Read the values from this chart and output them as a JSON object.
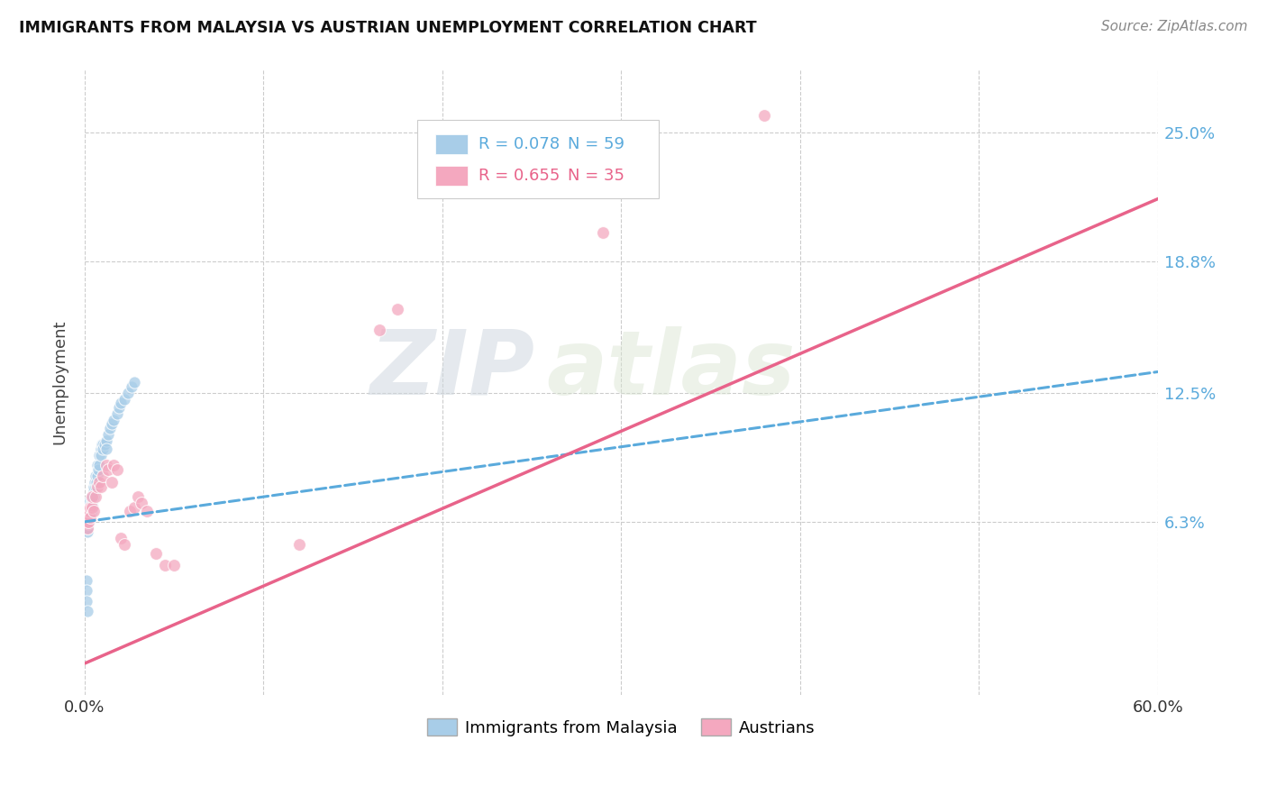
{
  "title": "IMMIGRANTS FROM MALAYSIA VS AUSTRIAN UNEMPLOYMENT CORRELATION CHART",
  "source": "Source: ZipAtlas.com",
  "ylabel": "Unemployment",
  "xlim": [
    0.0,
    0.6
  ],
  "ylim": [
    -0.02,
    0.28
  ],
  "ytick_labels": [
    "6.3%",
    "12.5%",
    "18.8%",
    "25.0%"
  ],
  "ytick_values": [
    0.063,
    0.125,
    0.188,
    0.25
  ],
  "xtick_labels": [
    "0.0%",
    "",
    "",
    "",
    "",
    "",
    "60.0%"
  ],
  "xtick_values": [
    0.0,
    0.1,
    0.2,
    0.3,
    0.4,
    0.5,
    0.6
  ],
  "legend_r1": "0.078",
  "legend_n1": "59",
  "legend_r2": "0.655",
  "legend_n2": "35",
  "legend_label1": "Immigrants from Malaysia",
  "legend_label2": "Austrians",
  "color_blue": "#a8cde8",
  "color_pink": "#f4a8bf",
  "color_blue_line": "#5aaadc",
  "color_pink_line": "#e8638a",
  "watermark_zip": "ZIP",
  "watermark_atlas": "atlas",
  "blue_scatter_x": [
    0.0005,
    0.0008,
    0.001,
    0.001,
    0.0012,
    0.0013,
    0.0015,
    0.0015,
    0.0018,
    0.002,
    0.002,
    0.0022,
    0.0025,
    0.0025,
    0.003,
    0.003,
    0.0032,
    0.0035,
    0.0035,
    0.004,
    0.004,
    0.004,
    0.0042,
    0.0045,
    0.005,
    0.005,
    0.0052,
    0.0055,
    0.006,
    0.006,
    0.0065,
    0.007,
    0.007,
    0.0075,
    0.008,
    0.008,
    0.009,
    0.009,
    0.0095,
    0.01,
    0.01,
    0.011,
    0.012,
    0.012,
    0.013,
    0.014,
    0.015,
    0.016,
    0.018,
    0.019,
    0.02,
    0.022,
    0.024,
    0.026,
    0.028,
    0.0008,
    0.001,
    0.0012,
    0.0015
  ],
  "blue_scatter_y": [
    0.068,
    0.065,
    0.072,
    0.06,
    0.063,
    0.058,
    0.068,
    0.06,
    0.062,
    0.07,
    0.063,
    0.065,
    0.068,
    0.072,
    0.07,
    0.065,
    0.068,
    0.072,
    0.068,
    0.075,
    0.072,
    0.068,
    0.075,
    0.07,
    0.078,
    0.075,
    0.08,
    0.082,
    0.085,
    0.08,
    0.082,
    0.09,
    0.085,
    0.088,
    0.095,
    0.09,
    0.098,
    0.095,
    0.1,
    0.1,
    0.098,
    0.1,
    0.102,
    0.098,
    0.105,
    0.108,
    0.11,
    0.112,
    0.115,
    0.118,
    0.12,
    0.122,
    0.125,
    0.128,
    0.13,
    0.035,
    0.03,
    0.025,
    0.02
  ],
  "pink_scatter_x": [
    0.001,
    0.001,
    0.0015,
    0.002,
    0.002,
    0.003,
    0.003,
    0.004,
    0.004,
    0.005,
    0.006,
    0.007,
    0.008,
    0.009,
    0.01,
    0.012,
    0.013,
    0.015,
    0.016,
    0.018,
    0.02,
    0.022,
    0.025,
    0.028,
    0.03,
    0.032,
    0.035,
    0.04,
    0.045,
    0.05,
    0.38,
    0.29,
    0.175,
    0.165,
    0.12
  ],
  "pink_scatter_y": [
    0.068,
    0.063,
    0.06,
    0.063,
    0.068,
    0.07,
    0.065,
    0.07,
    0.075,
    0.068,
    0.075,
    0.08,
    0.082,
    0.08,
    0.085,
    0.09,
    0.088,
    0.082,
    0.09,
    0.088,
    0.055,
    0.052,
    0.068,
    0.07,
    0.075,
    0.072,
    0.068,
    0.048,
    0.042,
    0.042,
    0.258,
    0.202,
    0.165,
    0.155,
    0.052
  ],
  "blue_line_x0": 0.0,
  "blue_line_x1": 0.6,
  "blue_line_y0": 0.063,
  "blue_line_y1": 0.135,
  "pink_line_x0": 0.0,
  "pink_line_x1": 0.6,
  "pink_line_y0": -0.005,
  "pink_line_y1": 0.218
}
